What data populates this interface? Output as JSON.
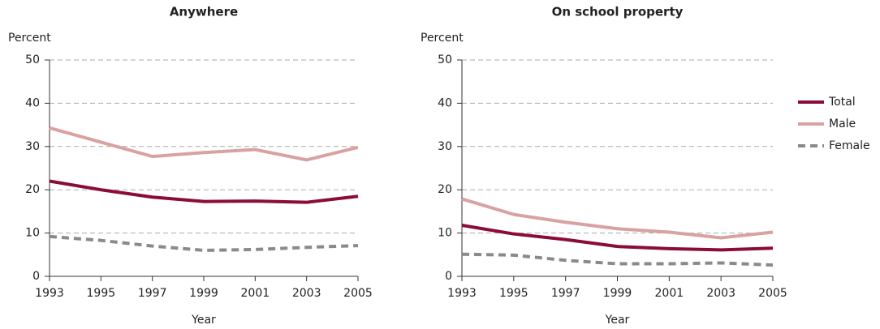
{
  "chart_data": [
    {
      "type": "line",
      "title": "Anywhere",
      "ylabel": "Percent",
      "xlabel": "Year",
      "x": [
        1993,
        1995,
        1997,
        1999,
        2001,
        2003,
        2005
      ],
      "xlim": [
        1993,
        2005
      ],
      "xticks": [
        1993,
        1995,
        1997,
        1999,
        2001,
        2003,
        2005
      ],
      "ylim": [
        0,
        50
      ],
      "yticks": [
        0,
        10,
        20,
        30,
        40,
        50
      ],
      "grid": true,
      "series": [
        {
          "color": "#8b0d35",
          "dash": false,
          "values": [
            22,
            20,
            18.3,
            17.3,
            17.4,
            17.1,
            18.5
          ]
        },
        {
          "color": "#d9a2a2",
          "dash": false,
          "values": [
            34.3,
            31,
            27.7,
            28.6,
            29.3,
            26.9,
            29.8
          ]
        },
        {
          "color": "#8a8a8a",
          "dash": true,
          "values": [
            9.2,
            8.3,
            7,
            6,
            6.2,
            6.7,
            7.1
          ]
        }
      ]
    },
    {
      "type": "line",
      "title": "On school property",
      "ylabel": "Percent",
      "xlabel": "Year",
      "x": [
        1993,
        1995,
        1997,
        1999,
        2001,
        2003,
        2005
      ],
      "xlim": [
        1993,
        2005
      ],
      "xticks": [
        1993,
        1995,
        1997,
        1999,
        2001,
        2003,
        2005
      ],
      "ylim": [
        0,
        50
      ],
      "yticks": [
        0,
        10,
        20,
        30,
        40,
        50
      ],
      "grid": true,
      "legend": "right",
      "series": [
        {
          "name": "Total",
          "color": "#8b0d35",
          "dash": false,
          "values": [
            11.8,
            9.8,
            8.5,
            6.9,
            6.4,
            6.1,
            6.5
          ]
        },
        {
          "name": "Male",
          "color": "#d9a2a2",
          "dash": false,
          "values": [
            17.9,
            14.3,
            12.5,
            11,
            10.2,
            8.9,
            10.2
          ]
        },
        {
          "name": "Female",
          "color": "#8a8a8a",
          "dash": true,
          "values": [
            5.1,
            4.9,
            3.7,
            2.9,
            2.9,
            3.1,
            2.6
          ]
        }
      ]
    }
  ]
}
